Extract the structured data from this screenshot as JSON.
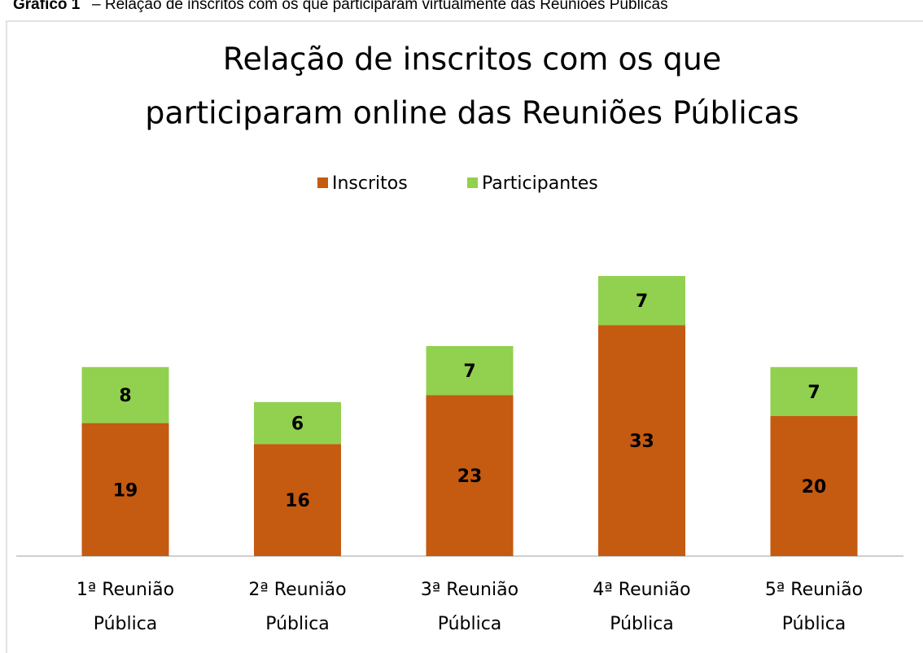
{
  "caption_label": "Gráfico 1",
  "caption_text": "– Relação de inscritos com os que participaram virtualmente das Reuniões Públicas",
  "chart_data": {
    "type": "stacked_bar",
    "title": [
      "Relação de inscritos com os que",
      "participaram online das Reuniões Públicas"
    ],
    "categories": [
      "1ª Reunião Pública",
      "2ª Reunião Pública",
      "3ª Reunião Pública",
      "4ª Reunião Pública",
      "5ª Reunião Pública"
    ],
    "series": [
      {
        "name": "Inscritos",
        "color": "#c55a11",
        "values": [
          19,
          16,
          23,
          33,
          20
        ]
      },
      {
        "name": "Participantes",
        "color": "#92d050",
        "values": [
          8,
          6,
          7,
          7,
          7
        ]
      }
    ],
    "legend": "top"
  }
}
